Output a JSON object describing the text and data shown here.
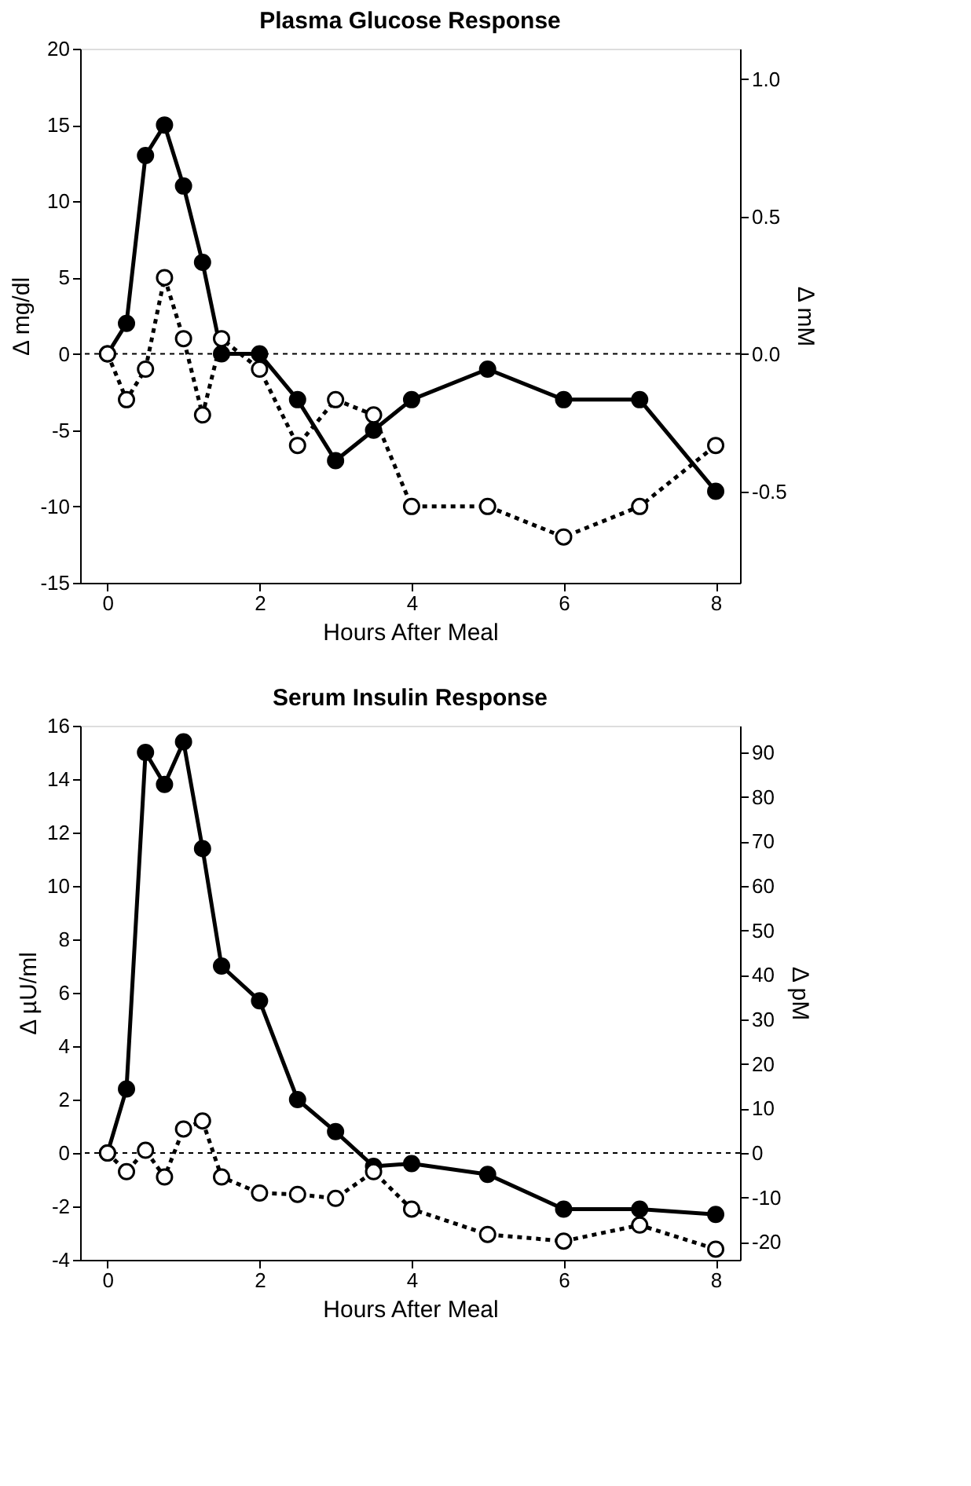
{
  "chart_data": [
    {
      "type": "line",
      "title": "Plasma Glucose Response",
      "xlabel": "Hours After Meal",
      "ylabel": "Δ mg/dl",
      "y2label": "Δ mM",
      "x": [
        0,
        0.25,
        0.5,
        0.75,
        1,
        1.25,
        1.5,
        2,
        2.5,
        3,
        3.5,
        4,
        5,
        6,
        7,
        8
      ],
      "series": [
        {
          "color": "#000000",
          "line_style": "solid",
          "values": [
            0,
            2,
            13,
            15,
            11,
            6,
            0,
            0,
            -3,
            -7,
            -5,
            -3,
            -1,
            -3,
            -3,
            -9
          ]
        },
        {
          "color": "#000000",
          "line_style": "dotted",
          "values": [
            0,
            -3,
            -1,
            5,
            1,
            -4,
            1,
            -1,
            -6,
            -3,
            -4,
            -10,
            -10,
            -12,
            -10,
            -6
          ]
        }
      ],
      "marker": "circle",
      "grid": false,
      "xlim": [
        -0.36,
        8.32
      ],
      "xticks": [
        0,
        2,
        4,
        6,
        8
      ],
      "ylim": [
        -15,
        20
      ],
      "yticks": [
        -15,
        -10,
        -5,
        0,
        5,
        10,
        15,
        20
      ],
      "y2lim": [
        -0.833,
        1.111
      ],
      "y2ticks": [
        {
          "value": -0.5,
          "label": "-0.5"
        },
        {
          "value": 0,
          "label": "0.0"
        },
        {
          "value": 0.5,
          "label": "0.5"
        },
        {
          "value": 1,
          "label": "1.0"
        }
      ],
      "ref_lines": [
        {
          "axis": "y",
          "value": 0,
          "line_style": "dotted",
          "color": "#000000"
        }
      ]
    },
    {
      "type": "line",
      "title": "Serum Insulin Response",
      "xlabel": "Hours After Meal",
      "ylabel": "Δ µU/ml",
      "y2label": "Δ pM",
      "x": [
        0,
        0.25,
        0.5,
        0.75,
        1,
        1.25,
        1.5,
        2,
        2.5,
        3,
        3.5,
        4,
        5,
        6,
        7,
        8
      ],
      "series": [
        {
          "color": "#000000",
          "line_style": "solid",
          "values": [
            0,
            2.4,
            15.0,
            13.8,
            15.4,
            11.4,
            7.0,
            5.7,
            2.0,
            0.8,
            -0.5,
            -0.4,
            -0.8,
            -2.1,
            -2.1,
            -2.3
          ]
        },
        {
          "color": "#000000",
          "line_style": "dotted",
          "values": [
            0,
            -0.7,
            0.1,
            -0.9,
            0.9,
            1.2,
            -0.9,
            -1.5,
            -1.55,
            -1.7,
            -0.7,
            -2.1,
            -3.05,
            -3.3,
            -2.7,
            -3.6
          ]
        }
      ],
      "marker": "circle",
      "grid": false,
      "xlim": [
        -0.36,
        8.32
      ],
      "xticks": [
        0,
        2,
        4,
        6,
        8
      ],
      "ylim": [
        -4,
        16
      ],
      "yticks": [
        -4,
        -2,
        0,
        2,
        4,
        6,
        8,
        10,
        12,
        14,
        16
      ],
      "y2lim": [
        -24,
        96
      ],
      "y2ticks": [
        -20,
        -10,
        0,
        10,
        20,
        30,
        40,
        50,
        60,
        70,
        80,
        90
      ],
      "ref_lines": [
        {
          "axis": "y",
          "value": 0,
          "line_style": "dotted",
          "color": "#000000"
        }
      ]
    }
  ]
}
